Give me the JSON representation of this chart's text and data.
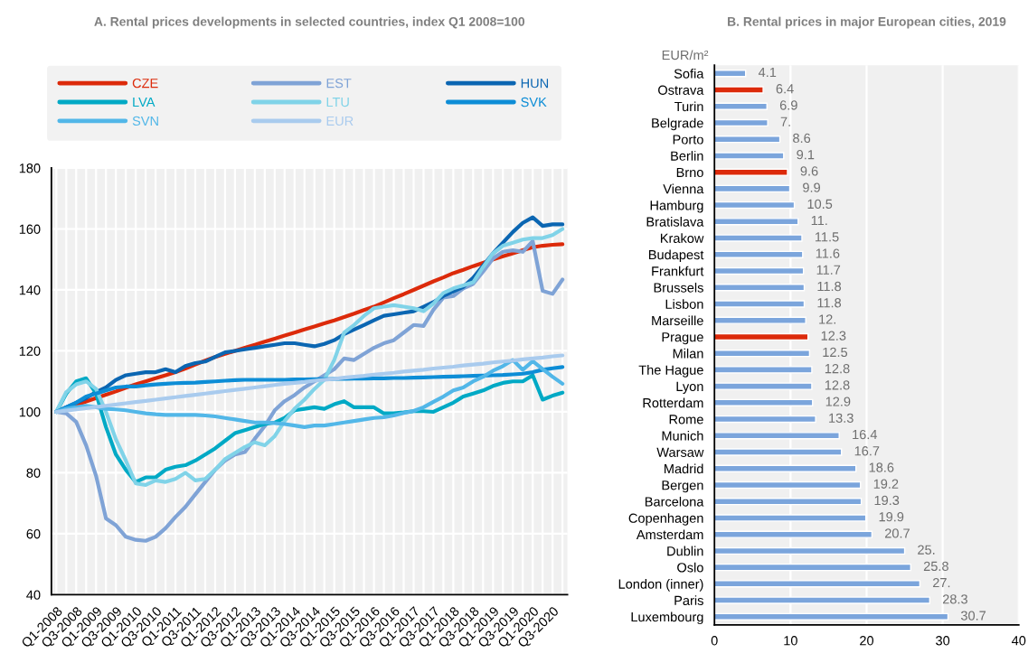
{
  "chart_data": [
    {
      "type": "line",
      "title": "A. Rental prices developments in selected countries, index Q1 2008=100",
      "categories": [
        "Q1-2008",
        null,
        "Q3-2008",
        null,
        "Q1-2009",
        null,
        "Q3-2009",
        null,
        "Q1-2010",
        null,
        "Q3-2010",
        null,
        "Q1-2011",
        null,
        "Q3-2011",
        null,
        "Q1-2012",
        null,
        "Q3-2012",
        null,
        "Q1-2013",
        null,
        "Q3-2013",
        null,
        "Q1-2014",
        null,
        "Q3-2014",
        null,
        "Q1-2015",
        null,
        "Q3-2015",
        null,
        "Q1-2016",
        null,
        "Q3-2016",
        null,
        "Q1-2017",
        null,
        "Q3-2017",
        null,
        "Q1-2018",
        null,
        "Q3-2018",
        null,
        "Q1-2019",
        null,
        "Q3-2019",
        null,
        "Q1-2020",
        null,
        "Q3-2020",
        null
      ],
      "series": [
        {
          "name": "CZE",
          "color": "#dc2a0a",
          "values": [
            100,
            101.1,
            102.2,
            103.4,
            104.5,
            105.6,
            106.7,
            107.9,
            109,
            110,
            111,
            112,
            113,
            114.2,
            115.5,
            116.8,
            118,
            119,
            120,
            121,
            122,
            123,
            124,
            125,
            126,
            127,
            128,
            129,
            130,
            131.1,
            132.2,
            133.4,
            134.5,
            135.9,
            137.3,
            138.6,
            140,
            141.4,
            142.8,
            144.1,
            145.5,
            146.6,
            147.8,
            148.9,
            150,
            151,
            152,
            153,
            154,
            154.5,
            154.8,
            155
          ]
        },
        {
          "name": "EST",
          "color": "#7fa3d6",
          "values": [
            100,
            99.5,
            96.7,
            89,
            79,
            65,
            62.8,
            59,
            58,
            57.7,
            59,
            61.8,
            65.5,
            68.8,
            72.9,
            77,
            81,
            84,
            86,
            86.8,
            91.2,
            95.3,
            100.5,
            103.5,
            105.5,
            108,
            110,
            112,
            114,
            117.5,
            117,
            119,
            121,
            122.5,
            123.5,
            126,
            128.5,
            128.2,
            133.5,
            137.5,
            138,
            140.5,
            142,
            146,
            150.3,
            152.5,
            153,
            152.5,
            156,
            139.7,
            138.7,
            143.4
          ]
        },
        {
          "name": "HUN",
          "color": "#0b66b2",
          "values": [
            100,
            101.5,
            103,
            104.5,
            106.5,
            108,
            110.5,
            112,
            112.5,
            113,
            113,
            114,
            113,
            115,
            116,
            116.5,
            118,
            119.5,
            120,
            120.5,
            121,
            121.5,
            122,
            122.5,
            122.5,
            122,
            121.5,
            122.3,
            123.5,
            125.5,
            127,
            128.5,
            130,
            131.5,
            132,
            132.5,
            133,
            134.5,
            136,
            138,
            139.5,
            141,
            144,
            148,
            152,
            155.5,
            159,
            162,
            163.8,
            161,
            161.5,
            161.5
          ]
        },
        {
          "name": "LVA",
          "color": "#00a9c5",
          "values": [
            100,
            106,
            110,
            111,
            106,
            95,
            86,
            81,
            77,
            78.5,
            78.5,
            81,
            82,
            82.5,
            84,
            86,
            88,
            90.5,
            93,
            94,
            95,
            96,
            96.5,
            98,
            100.5,
            101,
            101.5,
            101,
            102.5,
            103.5,
            101.5,
            101.5,
            101.5,
            99.5,
            99.5,
            99.8,
            100.2,
            100.2,
            100,
            101.5,
            103,
            105,
            106,
            107,
            108.5,
            109.5,
            110,
            110,
            112,
            104,
            105.3,
            106.3
          ]
        },
        {
          "name": "LTU",
          "color": "#80d3e8",
          "values": [
            100,
            106.5,
            109,
            110,
            107.5,
            100,
            91,
            84,
            76.5,
            76,
            77.5,
            77,
            78,
            80,
            77.5,
            78,
            81,
            84.5,
            86.5,
            88.5,
            90,
            89,
            92,
            97,
            101,
            104,
            107.5,
            110.5,
            117,
            126,
            128.5,
            131.5,
            134,
            134.5,
            135,
            134.5,
            134,
            133,
            135.5,
            139,
            140.5,
            141.5,
            142.5,
            147.5,
            152,
            154.5,
            155.5,
            156.5,
            157,
            157,
            158,
            160
          ]
        },
        {
          "name": "SVK",
          "color": "#0d8dd6",
          "values": [
            100,
            101.5,
            103,
            105,
            106,
            107,
            108,
            108.3,
            108.3,
            108.7,
            109,
            109.2,
            109.4,
            109.5,
            109.6,
            109.8,
            110,
            110.2,
            110.4,
            110.5,
            110.5,
            110.5,
            110.5,
            110.5,
            110.6,
            110.6,
            110.7,
            110.7,
            110.8,
            110.8,
            110.9,
            110.9,
            111,
            111,
            111.1,
            111.1,
            111.2,
            111.3,
            111.4,
            111.5,
            111.6,
            111.7,
            111.8,
            111.9,
            112,
            112.1,
            112.3,
            112.5,
            113,
            113.8,
            114.3,
            114.7
          ]
        },
        {
          "name": "SVN",
          "color": "#52b7e8",
          "values": [
            100,
            101,
            101.5,
            102,
            101.5,
            101,
            100.8,
            100.5,
            100,
            99.5,
            99.2,
            99,
            99,
            99,
            99,
            98.8,
            98.5,
            98,
            97.5,
            97,
            96.5,
            96.5,
            96.3,
            96,
            95.5,
            95,
            95.5,
            95.5,
            96,
            96.5,
            97,
            97.5,
            98,
            98.2,
            98.8,
            99.6,
            100.3,
            101.5,
            103.3,
            105,
            107,
            108,
            110,
            111.5,
            113.5,
            115,
            117,
            113.8,
            116.6,
            114,
            111.5,
            109.2
          ]
        },
        {
          "name": "EUR",
          "color": "#a9cbee",
          "values": [
            100,
            100.4,
            100.8,
            101.2,
            101.6,
            102,
            102.4,
            102.8,
            103.2,
            103.6,
            104,
            104.4,
            104.8,
            105.2,
            105.6,
            106,
            106.4,
            106.8,
            107.2,
            107.6,
            108,
            108.4,
            108.8,
            109.2,
            109.5,
            109.8,
            110.2,
            110.5,
            110.8,
            111.2,
            111.5,
            111.8,
            112.2,
            112.5,
            112.8,
            113.2,
            113.5,
            113.8,
            114.2,
            114.5,
            114.8,
            115.2,
            115.5,
            115.8,
            116.2,
            116.5,
            116.8,
            117.2,
            117.5,
            117.8,
            118.2,
            118.5
          ]
        }
      ],
      "ylim": [
        40,
        180
      ],
      "yticks": [
        40,
        60,
        80,
        100,
        120,
        140,
        160,
        180
      ],
      "grid": true,
      "legend": "top",
      "marker": "none",
      "line_style": "solid"
    },
    {
      "type": "bar",
      "orientation": "horizontal",
      "title": "B. Rental prices in major European cities, 2019",
      "ylabel": "EUR/m²",
      "categories": [
        "Sofia",
        "Ostrava",
        "Turin",
        "Belgrade",
        "Porto",
        "Berlin",
        "Brno",
        "Vienna",
        "Hamburg",
        "Bratislava",
        "Krakow",
        "Budapest",
        "Frankfurt",
        "Brussels",
        "Lisbon",
        "Marseille",
        "Prague",
        "Milan",
        "The Hague",
        "Lyon",
        "Rotterdam",
        "Rome",
        "Munich",
        "Warsaw",
        "Madrid",
        "Bergen",
        "Barcelona",
        "Copenhagen",
        "Amsterdam",
        "Dublin",
        "Oslo",
        "London (inner)",
        "Paris",
        "Luxembourg"
      ],
      "values": [
        4.1,
        6.4,
        6.9,
        7,
        8.6,
        9.1,
        9.6,
        9.9,
        10.5,
        11,
        11.5,
        11.6,
        11.7,
        11.8,
        11.8,
        12,
        12.3,
        12.5,
        12.8,
        12.8,
        12.9,
        13.3,
        16.4,
        16.7,
        18.6,
        19.2,
        19.3,
        19.9,
        20.7,
        25,
        25.8,
        27,
        28.3,
        30.7
      ],
      "value_labels": [
        "4.1",
        "6.4",
        "6.9",
        "7.",
        "8.6",
        "9.1",
        "9.6",
        "9.9",
        "10.5",
        "11.",
        "11.5",
        "11.6",
        "11.7",
        "11.8",
        "11.8",
        "12.",
        "12.3",
        "12.5",
        "12.8",
        "12.8",
        "12.9",
        "13.3",
        "16.4",
        "16.7",
        "18.6",
        "19.2",
        "19.3",
        "19.9",
        "20.7",
        "25.",
        "25.8",
        "27.",
        "28.3",
        "30.7"
      ],
      "colors": [
        "#7ba5dc",
        "#dc2a0a",
        "#7ba5dc",
        "#7ba5dc",
        "#7ba5dc",
        "#7ba5dc",
        "#dc2a0a",
        "#7ba5dc",
        "#7ba5dc",
        "#7ba5dc",
        "#7ba5dc",
        "#7ba5dc",
        "#7ba5dc",
        "#7ba5dc",
        "#7ba5dc",
        "#7ba5dc",
        "#dc2a0a",
        "#7ba5dc",
        "#7ba5dc",
        "#7ba5dc",
        "#7ba5dc",
        "#7ba5dc",
        "#7ba5dc",
        "#7ba5dc",
        "#7ba5dc",
        "#7ba5dc",
        "#7ba5dc",
        "#7ba5dc",
        "#7ba5dc",
        "#7ba5dc",
        "#7ba5dc",
        "#7ba5dc",
        "#7ba5dc",
        "#7ba5dc"
      ],
      "xlim": [
        0,
        40
      ],
      "xticks": [
        0,
        10,
        20,
        30,
        40
      ],
      "grid": "x"
    }
  ]
}
